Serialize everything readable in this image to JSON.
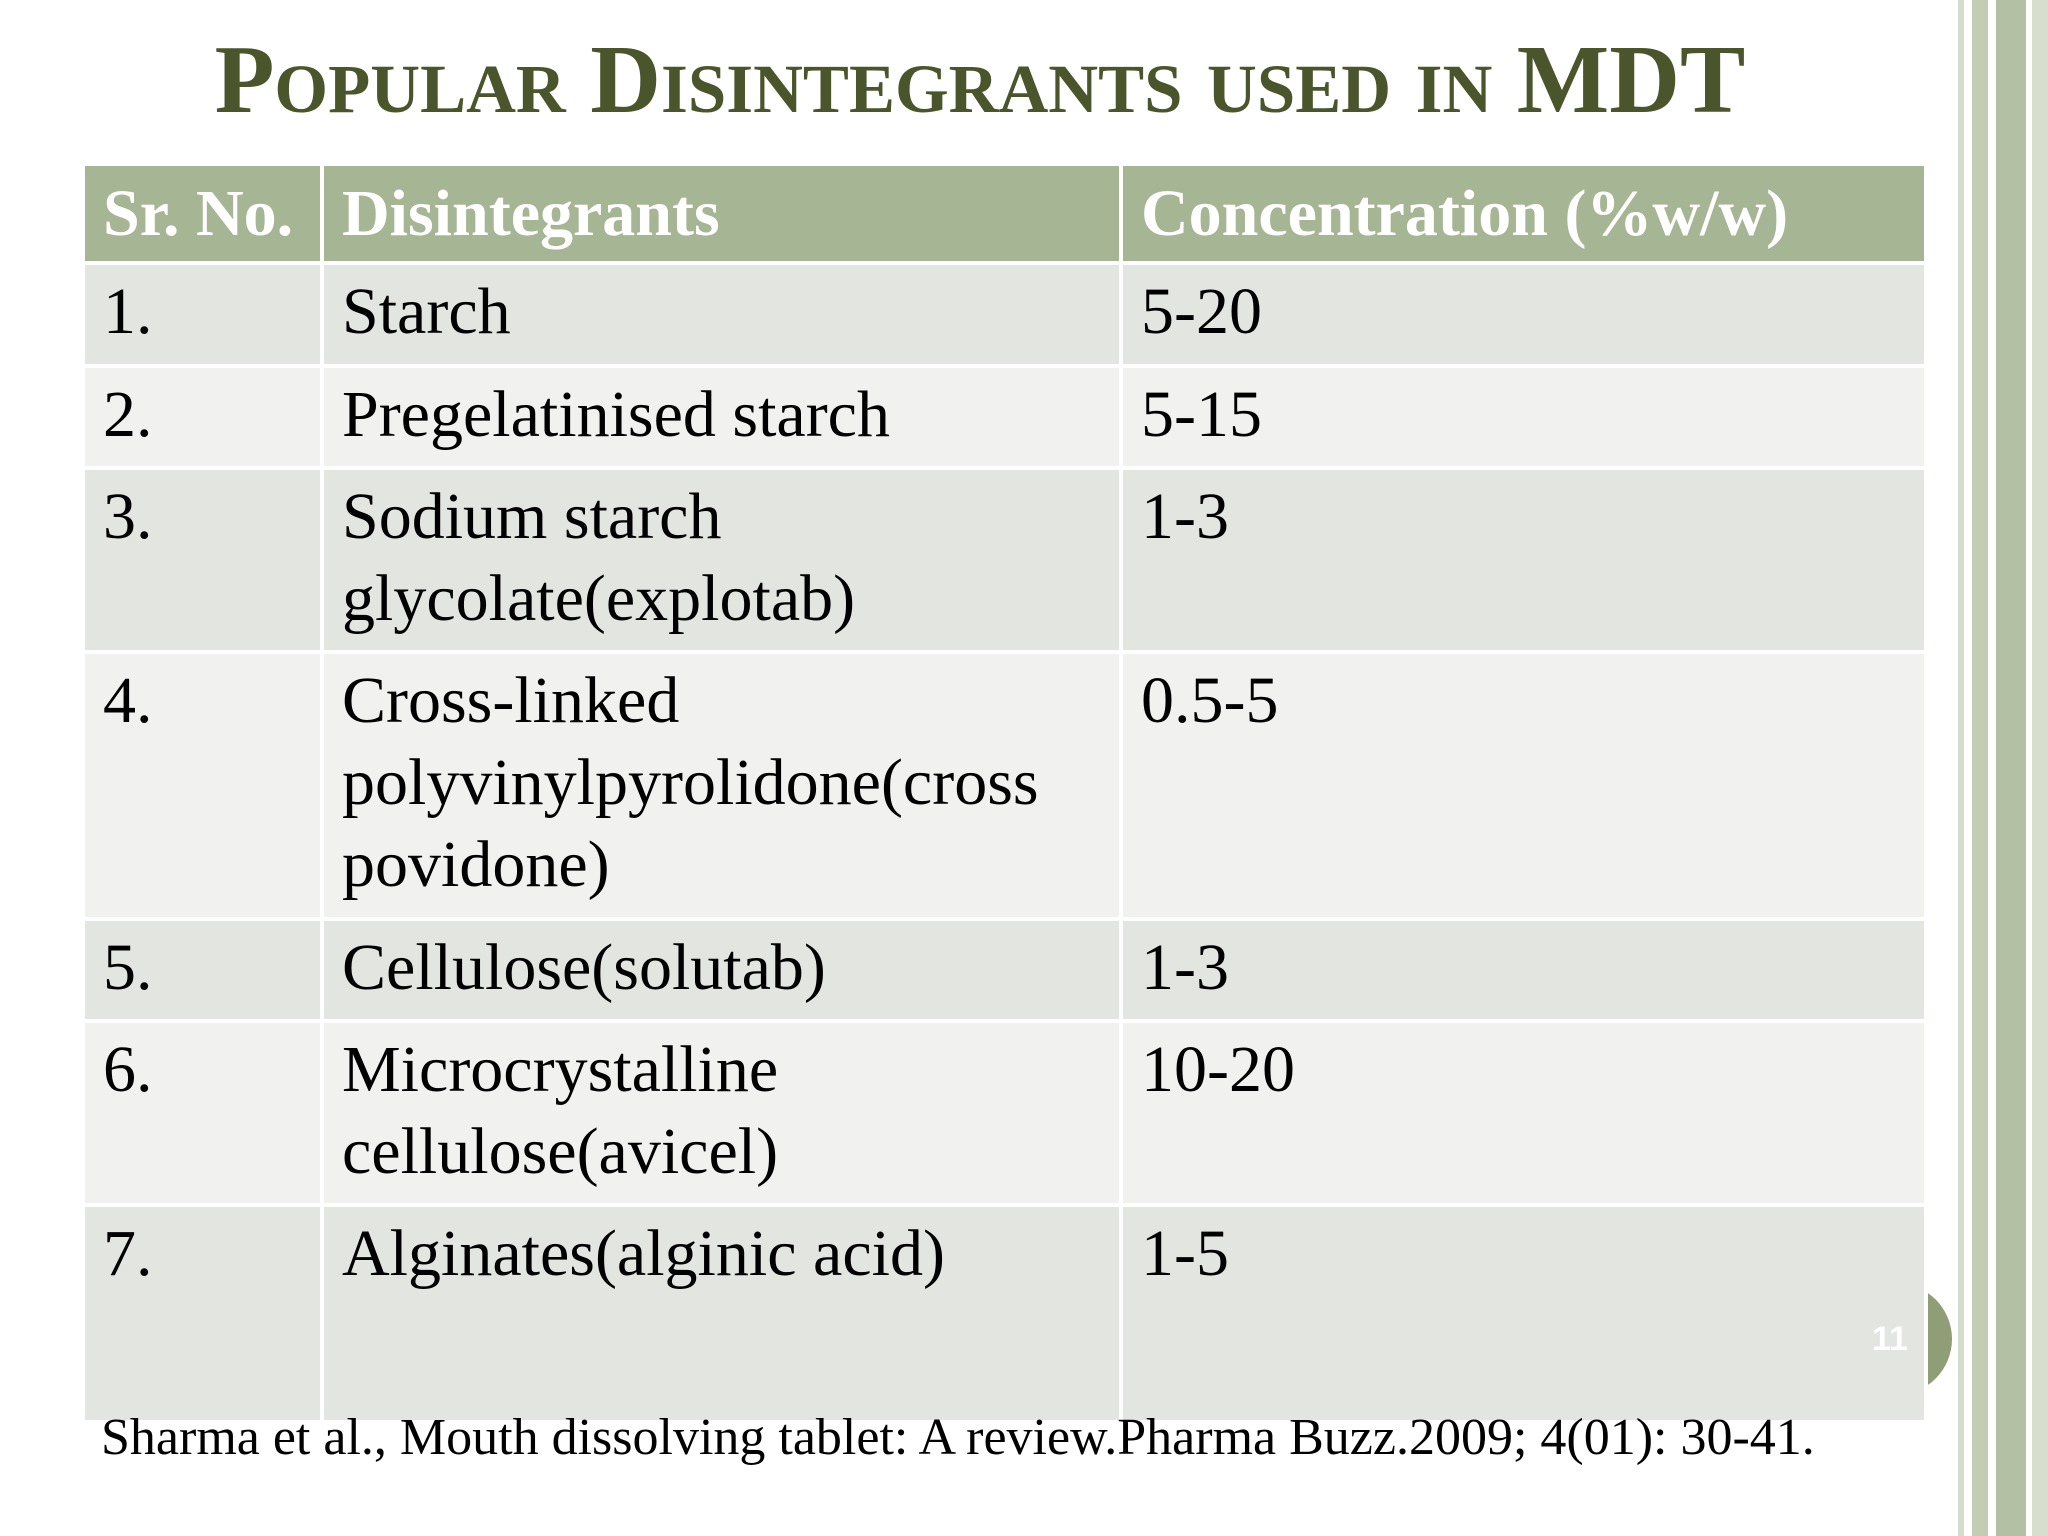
{
  "header": {
    "title": "Popular Disintegrants used in MDT"
  },
  "table": {
    "columns": [
      "Sr. No.",
      "Disintegrants",
      "Concentration (%w/w)"
    ],
    "rows": [
      [
        "1.",
        "Starch",
        "5-20"
      ],
      [
        "2.",
        "Pregelatinised starch",
        "5-15"
      ],
      [
        "3.",
        "Sodium starch glycolate(explotab)",
        "1-3"
      ],
      [
        "4.",
        "Cross-linked polyvinylpyrolidone(cross povidone)",
        "0.5-5"
      ],
      [
        "5.",
        "Cellulose(solutab)",
        "1-3"
      ],
      [
        "6.",
        "Microcrystalline cellulose(avicel)",
        "10-20"
      ],
      [
        "7.",
        "Alginates(alginic acid)",
        "1-5"
      ]
    ]
  },
  "footnote": "Sharma et al., Mouth dissolving tablet: A review.Pharma Buzz.2009; 4(01): 30-41.",
  "slide_number": "11"
}
